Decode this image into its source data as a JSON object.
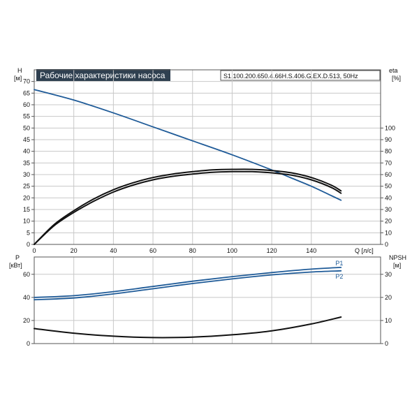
{
  "header": {
    "title": "Рабочие характеристики насоса",
    "model": "S1.100.200.650.4.66H.S.406.G.EX.D.513, 50Hz"
  },
  "colors": {
    "title_bg": "#2f4050",
    "blue": "#1f5b98",
    "black": "#111111",
    "grid": "#c8c8c8"
  },
  "chart_data": [
    {
      "type": "line",
      "name": "head-efficiency",
      "left_axis": {
        "label_line1": "H",
        "label_line2": "[м]",
        "ticks": [
          0,
          5,
          10,
          15,
          20,
          25,
          30,
          35,
          40,
          45,
          50,
          55,
          60,
          65,
          70
        ],
        "ylim": [
          0,
          75
        ]
      },
      "right_axis": {
        "label_line1": "eta",
        "label_line2": "[%]",
        "ticks": [
          0,
          10,
          20,
          30,
          40,
          50,
          60,
          70,
          80,
          90,
          100
        ],
        "ylim": [
          0,
          150
        ]
      },
      "x_axis": {
        "label": "Q [л/с]",
        "ticks": [
          0,
          20,
          40,
          60,
          80,
          100,
          120,
          140
        ],
        "xlim": [
          0,
          175
        ]
      },
      "series": [
        {
          "axis": "left",
          "color": "#1f5b98",
          "points": [
            [
              0,
              66.5
            ],
            [
              20,
              62
            ],
            [
              40,
              56.5
            ],
            [
              60,
              50.5
            ],
            [
              80,
              44.5
            ],
            [
              100,
              38.5
            ],
            [
              120,
              32
            ],
            [
              130,
              28.5
            ],
            [
              140,
              25
            ],
            [
              150,
              21
            ],
            [
              155,
              19
            ]
          ]
        },
        {
          "axis": "right",
          "color": "#111111",
          "points": [
            [
              0,
              0
            ],
            [
              10,
              17
            ],
            [
              20,
              29
            ],
            [
              30,
              39
            ],
            [
              40,
              47
            ],
            [
              50,
              53
            ],
            [
              60,
              57.5
            ],
            [
              70,
              60.5
            ],
            [
              80,
              62.5
            ],
            [
              90,
              64
            ],
            [
              100,
              64.5
            ],
            [
              110,
              64.5
            ],
            [
              120,
              63.5
            ],
            [
              130,
              61.5
            ],
            [
              140,
              57.5
            ],
            [
              150,
              51
            ],
            [
              155,
              46
            ]
          ]
        },
        {
          "axis": "right",
          "color": "#111111",
          "points": [
            [
              0,
              0
            ],
            [
              10,
              16
            ],
            [
              20,
              27.5
            ],
            [
              30,
              37
            ],
            [
              40,
              45
            ],
            [
              50,
              51
            ],
            [
              60,
              55.5
            ],
            [
              70,
              58.5
            ],
            [
              80,
              60.5
            ],
            [
              90,
              62
            ],
            [
              100,
              62.5
            ],
            [
              110,
              62.5
            ],
            [
              120,
              61.5
            ],
            [
              130,
              59.5
            ],
            [
              140,
              55.5
            ],
            [
              150,
              49
            ],
            [
              155,
              44
            ]
          ]
        }
      ]
    },
    {
      "type": "line",
      "name": "power-npsh",
      "left_axis": {
        "label_line1": "P",
        "label_line2": "[кВт]",
        "ticks": [
          0,
          20,
          40,
          60
        ],
        "ylim": [
          0,
          75
        ]
      },
      "right_axis": {
        "label_line1": "NPSH",
        "label_line2": "[м]",
        "ticks": [
          0,
          10,
          20,
          30
        ],
        "ylim": [
          0,
          37.5
        ]
      },
      "x_axis": {
        "xlim": [
          0,
          175
        ]
      },
      "series": [
        {
          "axis": "left",
          "color": "#1f5b98",
          "label": "P1",
          "points": [
            [
              0,
              40
            ],
            [
              20,
              41.5
            ],
            [
              40,
              45
            ],
            [
              60,
              49.5
            ],
            [
              80,
              54
            ],
            [
              100,
              58
            ],
            [
              120,
              61.5
            ],
            [
              140,
              64.5
            ],
            [
              155,
              66
            ]
          ]
        },
        {
          "axis": "left",
          "color": "#1f5b98",
          "label": "P2",
          "points": [
            [
              0,
              38
            ],
            [
              20,
              39.5
            ],
            [
              40,
              43
            ],
            [
              60,
              47.5
            ],
            [
              80,
              52
            ],
            [
              100,
              56
            ],
            [
              120,
              59.5
            ],
            [
              140,
              62
            ],
            [
              155,
              63
            ]
          ]
        },
        {
          "axis": "right",
          "color": "#111111",
          "points": [
            [
              0,
              6.5
            ],
            [
              20,
              4.5
            ],
            [
              40,
              3.2
            ],
            [
              60,
              2.6
            ],
            [
              80,
              2.8
            ],
            [
              100,
              3.8
            ],
            [
              120,
              5.5
            ],
            [
              140,
              8.5
            ],
            [
              155,
              11.5
            ]
          ]
        }
      ]
    }
  ]
}
